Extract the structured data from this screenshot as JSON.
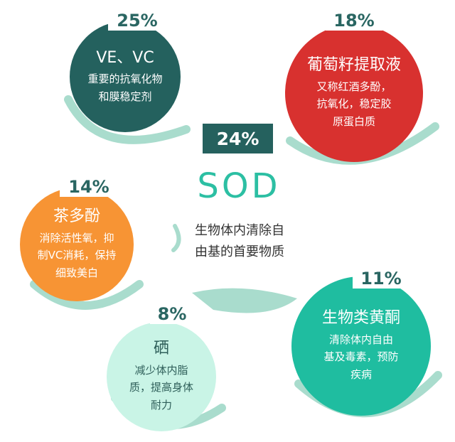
{
  "center": {
    "percent": "24%",
    "title": "SOD",
    "desc_line1": "生物体内清除自",
    "desc_line2": "由基的首要物质"
  },
  "items": [
    {
      "percent": "25%",
      "title": "VE、VC",
      "line1": "重要的抗氧化物",
      "line2": "和膜稳定剂",
      "line3": "",
      "color": "#24615e"
    },
    {
      "percent": "18%",
      "title": "葡萄籽提取液",
      "line1": "又称红酒多酚，",
      "line2": "抗氧化，稳定胶",
      "line3": "原蛋白质",
      "color": "#d8312f"
    },
    {
      "percent": "14%",
      "title": "茶多酚",
      "line1": "消除活性氧，抑",
      "line2": "制VC消耗，保持",
      "line3": "细致美白",
      "color": "#f79434"
    },
    {
      "percent": "8%",
      "title": "硒",
      "line1": "减少体内脂",
      "line2": "质，提高身体",
      "line3": "耐力",
      "color": "#c9f4e6"
    },
    {
      "percent": "11%",
      "title": "生物类黄酮",
      "line1": "清除体内自由",
      "line2": "基及毒素，预防",
      "line3": "疾病",
      "color": "#1fbda0"
    }
  ],
  "accent_color": "#a9dccd"
}
